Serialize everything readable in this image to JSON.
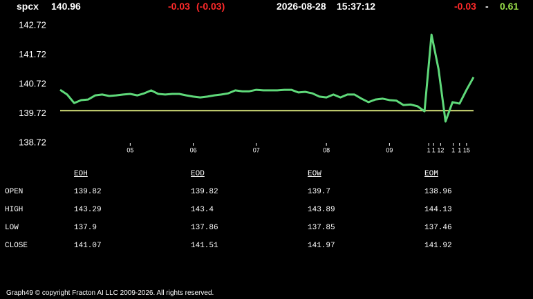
{
  "header": {
    "symbol": "spcx",
    "price": "140.96",
    "change": "-0.03",
    "change_pct": "(-0.03)",
    "date": "2026-08-28",
    "time": "15:37:12",
    "bid": "-0.03",
    "sep": "-",
    "ask": "0.61"
  },
  "chart_data": {
    "type": "line",
    "x": [
      0,
      1,
      2,
      3,
      4,
      5,
      6,
      7,
      8,
      9,
      10,
      11,
      12,
      13,
      14,
      15,
      16,
      17,
      18,
      19,
      20,
      21,
      22,
      23,
      24,
      25,
      26,
      27,
      28,
      29,
      30,
      31,
      32,
      33,
      34,
      35,
      36,
      37,
      38,
      39,
      40,
      41,
      42,
      43,
      44,
      45,
      46,
      47,
      48,
      49,
      50,
      51,
      52,
      53,
      54,
      55,
      56,
      57,
      58,
      59
    ],
    "series": [
      {
        "name": "spcx",
        "color": "#5fd97a",
        "values": [
          140.53,
          140.37,
          140.08,
          140.18,
          140.2,
          140.34,
          140.37,
          140.32,
          140.34,
          140.37,
          140.39,
          140.34,
          140.41,
          140.51,
          140.39,
          140.37,
          140.39,
          140.39,
          140.34,
          140.3,
          140.27,
          140.3,
          140.34,
          140.37,
          140.41,
          140.51,
          140.48,
          140.48,
          140.53,
          140.51,
          140.51,
          140.51,
          140.53,
          140.53,
          140.44,
          140.46,
          140.41,
          140.3,
          140.27,
          140.37,
          140.27,
          140.37,
          140.37,
          140.23,
          140.11,
          140.2,
          140.23,
          140.18,
          140.16,
          140.01,
          140.03,
          139.97,
          139.8,
          142.41,
          141.24,
          139.45,
          140.11,
          140.06,
          140.53,
          140.96
        ]
      }
    ],
    "reference_line": {
      "value": 139.82,
      "color": "#d6e27a"
    },
    "xlim": [
      0,
      59
    ],
    "ylim": [
      138.72,
      142.72
    ],
    "yticks": [
      138.72,
      139.72,
      140.72,
      141.72,
      142.72
    ],
    "xticks": [
      {
        "value": 10,
        "label": "05"
      },
      {
        "value": 19,
        "label": "06"
      },
      {
        "value": 28,
        "label": "07"
      },
      {
        "value": 38,
        "label": "08"
      },
      {
        "value": 47,
        "label": "09"
      },
      {
        "value": 52.6,
        "label": "1"
      },
      {
        "value": 53.3,
        "label": "1"
      },
      {
        "value": 54.3,
        "label": "12"
      },
      {
        "value": 56.1,
        "label": "1"
      },
      {
        "value": 57,
        "label": "1"
      },
      {
        "value": 58,
        "label": "15"
      }
    ]
  },
  "table": {
    "columns": [
      "EOH",
      "EOD",
      "EOW",
      "EOM"
    ],
    "rows": [
      {
        "label": "OPEN",
        "values": [
          "139.82",
          "139.82",
          "139.7",
          "138.96"
        ]
      },
      {
        "label": "HIGH",
        "values": [
          "143.29",
          "143.4",
          "143.89",
          "144.13"
        ]
      },
      {
        "label": "LOW",
        "values": [
          "137.9",
          "137.86",
          "137.85",
          "137.46"
        ]
      },
      {
        "label": "CLOSE",
        "values": [
          "141.07",
          "141.51",
          "141.97",
          "141.92"
        ]
      }
    ]
  },
  "footer": "Graph49 © copyright Fracton AI LLC 2009-2026. All rights reserved."
}
